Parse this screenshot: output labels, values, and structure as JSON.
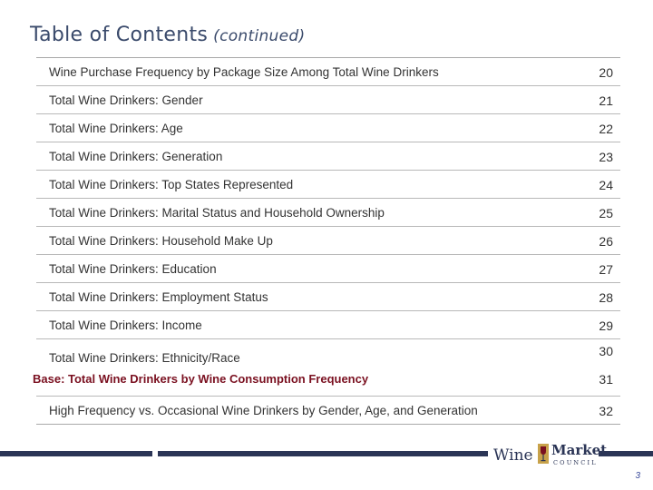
{
  "title": {
    "main": "Table of Contents",
    "suffix": "(continued)"
  },
  "toc": [
    {
      "label": "Wine Purchase Frequency by Package Size Among Total Wine Drinkers",
      "page": "20"
    },
    {
      "label": "Total Wine Drinkers: Gender",
      "page": "21"
    },
    {
      "label": "Total Wine Drinkers: Age",
      "page": "22"
    },
    {
      "label": "Total Wine Drinkers: Generation",
      "page": "23"
    },
    {
      "label": "Total Wine Drinkers: Top States Represented",
      "page": "24"
    },
    {
      "label": "Total Wine Drinkers: Marital Status and Household Ownership",
      "page": "25"
    },
    {
      "label": "Total Wine Drinkers:  Household Make Up",
      "page": "26"
    },
    {
      "label": "Total Wine Drinkers:  Education",
      "page": "27"
    },
    {
      "label": "Total Wine Drinkers:  Employment Status",
      "page": "28"
    },
    {
      "label": "Total Wine Drinkers:  Income",
      "page": "29"
    },
    {
      "label": "Total Wine Drinkers:  Ethnicity/Race",
      "page": "30"
    },
    {
      "label": "Base: Total Wine Drinkers by Wine Consumption Frequency",
      "page": "31"
    },
    {
      "label": "High Frequency vs. Occasional Wine Drinkers by Gender, Age, and Generation",
      "page": "32"
    }
  ],
  "logo": {
    "word1": "Wine",
    "word2": "Market",
    "word3": "COUNCIL"
  },
  "page_number": "3",
  "colors": {
    "title": "#3a4a6b",
    "accent": "#7a1020",
    "brand": "#2b3556"
  }
}
